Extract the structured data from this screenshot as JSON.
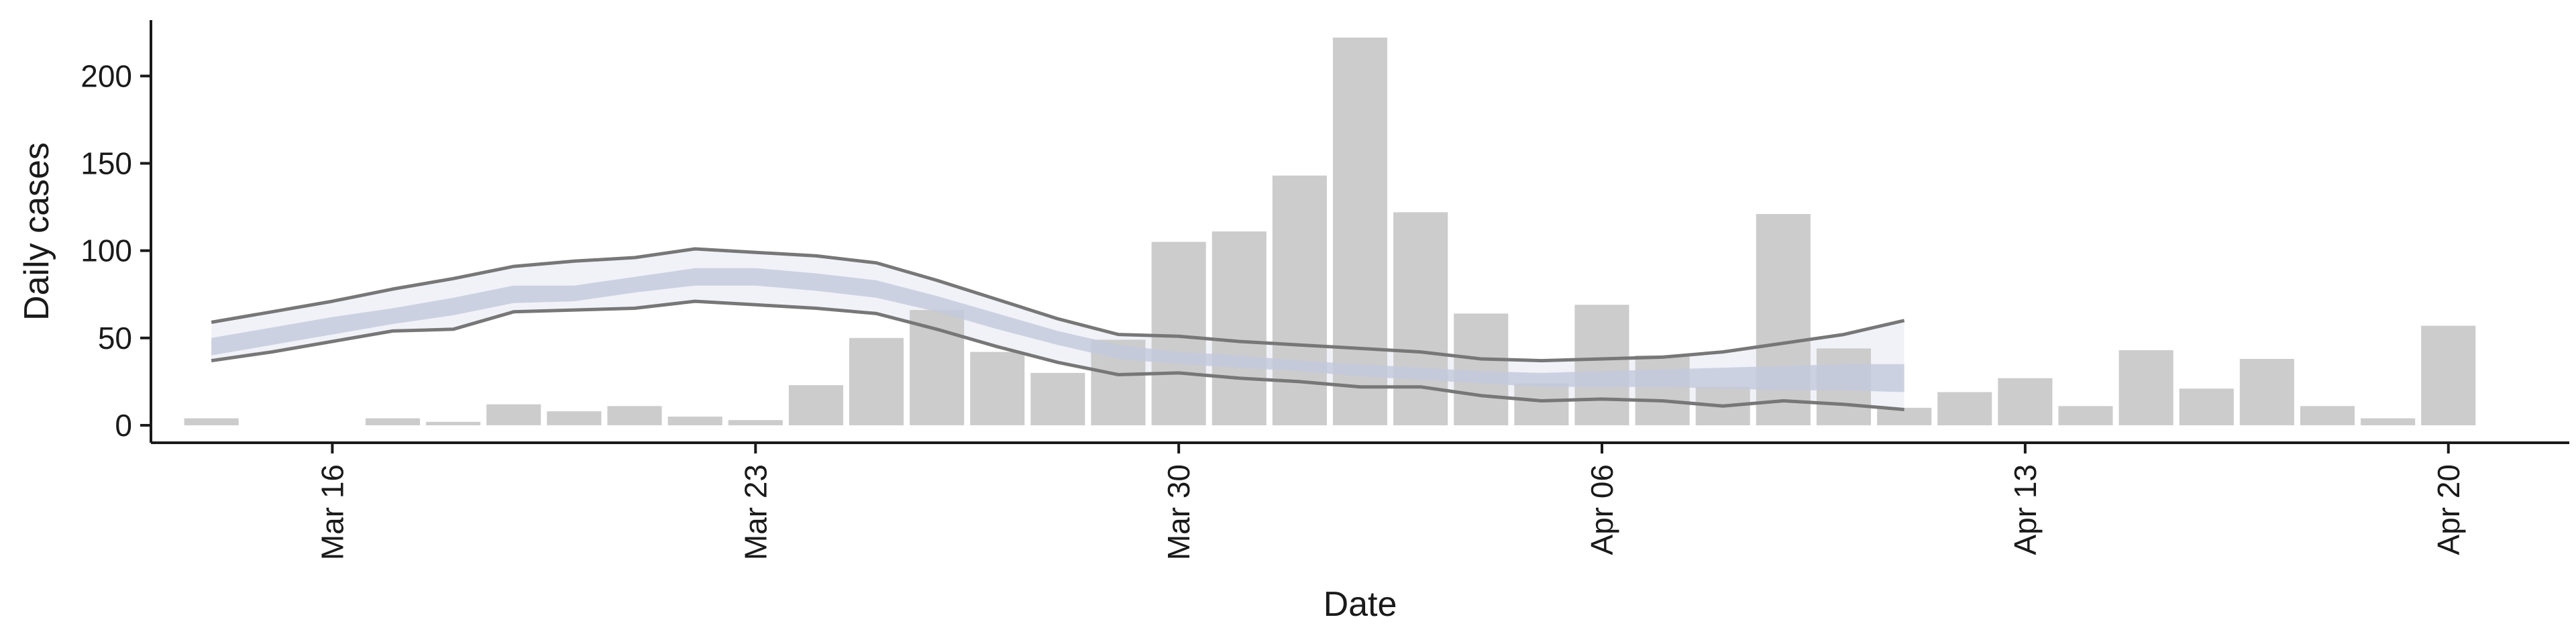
{
  "chart_data": {
    "type": "bar",
    "xlabel": "Date",
    "ylabel": "Daily cases",
    "x_range": [
      "2020-03-13",
      "2020-04-22"
    ],
    "ylim": [
      -10,
      232
    ],
    "yticks": [
      0,
      50,
      100,
      150,
      200
    ],
    "xticks": [
      {
        "date": "2020-03-16",
        "label": "Mar 16"
      },
      {
        "date": "2020-03-23",
        "label": "Mar 23"
      },
      {
        "date": "2020-03-30",
        "label": "Mar 30"
      },
      {
        "date": "2020-04-06",
        "label": "Apr 06"
      },
      {
        "date": "2020-04-13",
        "label": "Apr 13"
      },
      {
        "date": "2020-04-20",
        "label": "Apr 20"
      }
    ],
    "grid": false,
    "colors": {
      "bar": "#cccccc",
      "band_inner": "#c3c9dd",
      "band_outer": "#ebedf5",
      "bound_line": "#777777",
      "axis": "#1a1a1a"
    },
    "bars": {
      "dates": [
        "2020-03-14",
        "2020-03-15",
        "2020-03-16",
        "2020-03-17",
        "2020-03-18",
        "2020-03-19",
        "2020-03-20",
        "2020-03-21",
        "2020-03-22",
        "2020-03-23",
        "2020-03-24",
        "2020-03-25",
        "2020-03-26",
        "2020-03-27",
        "2020-03-28",
        "2020-03-29",
        "2020-03-30",
        "2020-03-31",
        "2020-04-01",
        "2020-04-02",
        "2020-04-03",
        "2020-04-04",
        "2020-04-05",
        "2020-04-06",
        "2020-04-07",
        "2020-04-08",
        "2020-04-09",
        "2020-04-10",
        "2020-04-11",
        "2020-04-12",
        "2020-04-13",
        "2020-04-14",
        "2020-04-15",
        "2020-04-16",
        "2020-04-17",
        "2020-04-18",
        "2020-04-19",
        "2020-04-20"
      ],
      "values": [
        4,
        0,
        0,
        4,
        2,
        12,
        8,
        11,
        5,
        3,
        23,
        50,
        66,
        42,
        30,
        49,
        105,
        111,
        143,
        222,
        122,
        64,
        24,
        69,
        40,
        22,
        121,
        44,
        10,
        19,
        27,
        11,
        43,
        21,
        38,
        11,
        4,
        57
      ]
    },
    "estimate": {
      "dates": [
        "2020-03-14",
        "2020-03-15",
        "2020-03-16",
        "2020-03-17",
        "2020-03-18",
        "2020-03-19",
        "2020-03-20",
        "2020-03-21",
        "2020-03-22",
        "2020-03-23",
        "2020-03-24",
        "2020-03-25",
        "2020-03-26",
        "2020-03-27",
        "2020-03-28",
        "2020-03-29",
        "2020-03-30",
        "2020-03-31",
        "2020-04-01",
        "2020-04-02",
        "2020-04-03",
        "2020-04-04",
        "2020-04-05",
        "2020-04-06",
        "2020-04-07",
        "2020-04-08",
        "2020-04-09",
        "2020-04-10",
        "2020-04-11"
      ],
      "outer_upper": [
        59,
        65,
        71,
        78,
        84,
        91,
        94,
        96,
        101,
        99,
        97,
        93,
        83,
        72,
        61,
        52,
        51,
        48,
        46,
        44,
        42,
        38,
        37,
        38,
        39,
        42,
        47,
        52,
        60
      ],
      "inner_upper": [
        50,
        56,
        62,
        67,
        73,
        80,
        80,
        85,
        90,
        90,
        87,
        83,
        74,
        64,
        54,
        46,
        42,
        40,
        37,
        35,
        33,
        31,
        30,
        31,
        32,
        33,
        34,
        35,
        35
      ],
      "inner_lower": [
        40,
        46,
        52,
        58,
        63,
        70,
        71,
        76,
        80,
        80,
        77,
        73,
        65,
        55,
        46,
        38,
        35,
        33,
        31,
        28,
        26,
        24,
        22,
        22,
        22,
        21,
        20,
        20,
        19
      ],
      "outer_lower": [
        37,
        42,
        48,
        54,
        55,
        65,
        66,
        67,
        71,
        69,
        67,
        64,
        55,
        45,
        36,
        29,
        30,
        27,
        25,
        22,
        22,
        17,
        14,
        15,
        14,
        11,
        14,
        12,
        9
      ]
    }
  }
}
